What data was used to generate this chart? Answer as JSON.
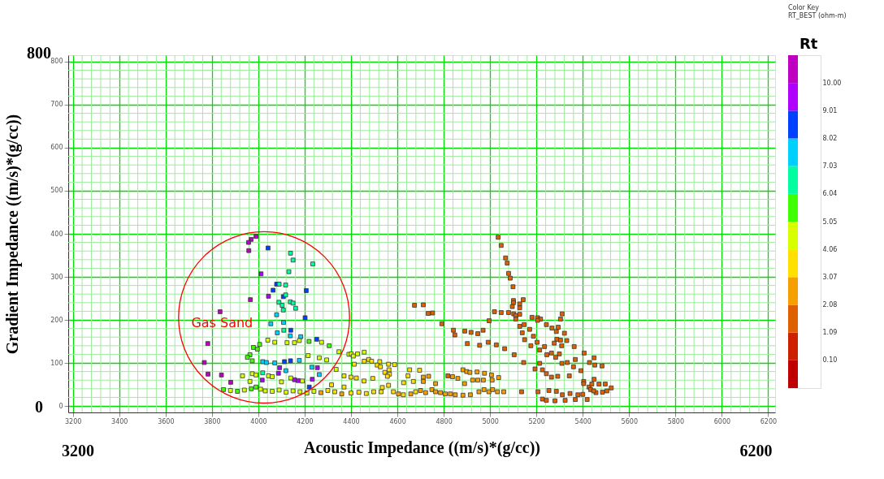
{
  "chart_data": {
    "type": "scatter",
    "xlabel": "Acoustic Impedance ((m/s)*(g/cc))",
    "ylabel": "Gradient Impedance ((m/s)*(g/cc))",
    "legend_title": "Color Key",
    "clabel": "RT_BEST (ohm-m)",
    "annotations": [
      "Gas Sand",
      "800",
      "0",
      "3200",
      "6200",
      "Rt"
    ],
    "marker": "square",
    "grid": true,
    "xlim": [
      3180,
      6230
    ],
    "ylim": [
      -15,
      815
    ],
    "xticks": [
      3200,
      {
        "value": 3240,
        "label": null
      },
      {
        "value": 3280,
        "label": null
      },
      {
        "value": 3320,
        "label": null
      },
      {
        "value": 3360,
        "label": null
      },
      3400,
      {
        "value": 3440,
        "label": null
      },
      {
        "value": 3480,
        "label": null
      },
      {
        "value": 3520,
        "label": null
      },
      {
        "value": 3560,
        "label": null
      },
      3600,
      {
        "value": 3640,
        "label": null
      },
      {
        "value": 3680,
        "label": null
      },
      {
        "value": 3720,
        "label": null
      },
      {
        "value": 3760,
        "label": null
      },
      3800,
      {
        "value": 3840,
        "label": null
      },
      {
        "value": 3880,
        "label": null
      },
      {
        "value": 3920,
        "label": null
      },
      {
        "value": 3960,
        "label": null
      },
      4000,
      {
        "value": 4040,
        "label": null
      },
      {
        "value": 4080,
        "label": null
      },
      {
        "value": 4120,
        "label": null
      },
      {
        "value": 4160,
        "label": null
      },
      4200,
      {
        "value": 4240,
        "label": null
      },
      {
        "value": 4280,
        "label": null
      },
      {
        "value": 4320,
        "label": null
      },
      {
        "value": 4360,
        "label": null
      },
      4400,
      {
        "value": 4440,
        "label": null
      },
      {
        "value": 4480,
        "label": null
      },
      {
        "value": 4520,
        "label": null
      },
      {
        "value": 4560,
        "label": null
      },
      4600,
      {
        "value": 4640,
        "label": null
      },
      {
        "value": 4680,
        "label": null
      },
      {
        "value": 4720,
        "label": null
      },
      {
        "value": 4760,
        "label": null
      },
      4800,
      {
        "value": 4840,
        "label": null
      },
      {
        "value": 4880,
        "label": null
      },
      {
        "value": 4920,
        "label": null
      },
      {
        "value": 4960,
        "label": null
      },
      5000,
      {
        "value": 5040,
        "label": null
      },
      {
        "value": 5080,
        "label": null
      },
      {
        "value": 5120,
        "label": null
      },
      {
        "value": 5160,
        "label": null
      },
      5200,
      {
        "value": 5240,
        "label": null
      },
      {
        "value": 5280,
        "label": null
      },
      {
        "value": 5320,
        "label": null
      },
      {
        "value": 5360,
        "label": null
      },
      5400,
      {
        "value": 5440,
        "label": null
      },
      {
        "value": 5480,
        "label": null
      },
      {
        "value": 5520,
        "label": null
      },
      {
        "value": 5560,
        "label": null
      },
      5600,
      {
        "value": 5640,
        "label": null
      },
      {
        "value": 5680,
        "label": null
      },
      {
        "value": 5720,
        "label": null
      },
      {
        "value": 5760,
        "label": null
      },
      5800,
      {
        "value": 5840,
        "label": null
      },
      {
        "value": 5880,
        "label": null
      },
      {
        "value": 5920,
        "label": null
      },
      {
        "value": 5960,
        "label": null
      },
      6000,
      {
        "value": 6040,
        "label": null
      },
      {
        "value": 6080,
        "label": null
      },
      {
        "value": 6120,
        "label": null
      },
      {
        "value": 6160,
        "label": null
      },
      6200
    ],
    "yticks": [
      0,
      {
        "value": 20,
        "label": null
      },
      {
        "value": 40,
        "label": null
      },
      {
        "value": 60,
        "label": null
      },
      {
        "value": 80,
        "label": null
      },
      100,
      {
        "value": 120,
        "label": null
      },
      {
        "value": 140,
        "label": null
      },
      {
        "value": 160,
        "label": null
      },
      {
        "value": 180,
        "label": null
      },
      200,
      {
        "value": 220,
        "label": null
      },
      {
        "value": 240,
        "label": null
      },
      {
        "value": 260,
        "label": null
      },
      {
        "value": 280,
        "label": null
      },
      300,
      {
        "value": 320,
        "label": null
      },
      {
        "value": 340,
        "label": null
      },
      {
        "value": 360,
        "label": null
      },
      {
        "value": 380,
        "label": null
      },
      400,
      {
        "value": 420,
        "label": null
      },
      {
        "value": 440,
        "label": null
      },
      {
        "value": 460,
        "label": null
      },
      {
        "value": 480,
        "label": null
      },
      500,
      {
        "value": 520,
        "label": null
      },
      {
        "value": 540,
        "label": null
      },
      {
        "value": 560,
        "label": null
      },
      {
        "value": 580,
        "label": null
      },
      600,
      {
        "value": 620,
        "label": null
      },
      {
        "value": 640,
        "label": null
      },
      {
        "value": 660,
        "label": null
      },
      {
        "value": 680,
        "label": null
      },
      700,
      {
        "value": 720,
        "label": null
      },
      {
        "value": 740,
        "label": null
      },
      {
        "value": 760,
        "label": null
      },
      {
        "value": 780,
        "label": null
      },
      800
    ],
    "clim": [
      -0.89,
      10.99
    ],
    "cticks": [
      {
        "value": 0.1,
        "label": "0.10"
      },
      1.09,
      2.08,
      3.07,
      4.06,
      5.05,
      6.04,
      7.03,
      8.02,
      9.01,
      {
        "value": 10.0,
        "label": "10.00"
      }
    ],
    "series": [
      {
        "color": "#c000c0",
        "x": [
          3990,
          3969,
          3958,
          3959,
          3966,
          3835,
          3782,
          3767,
          3783,
          3841,
          3881
        ],
        "values": [
          394,
          387,
          380,
          361,
          247,
          219,
          145,
          101,
          74,
          72,
          55
        ]
      },
      {
        "color": "#b000ff",
        "x": [
          4012,
          4044,
          4092,
          4255,
          4087,
          4156,
          4172,
          4233,
          4017
        ],
        "values": [
          307,
          255,
          89,
          89,
          76,
          61,
          59,
          62,
          60
        ]
      },
      {
        "color": "#0040ff",
        "x": [
          4042,
          4079,
          4064,
          4207,
          4108,
          4202,
          4140,
          4252,
          4113,
          4139,
          4220
        ],
        "values": [
          367,
          283,
          269,
          268,
          254,
          205,
          176,
          155,
          103,
          105,
          44
        ]
      },
      {
        "color": "#00d0ff",
        "x": [
          4079,
          4054,
          4109,
          4082,
          4138,
          4183,
          4019,
          4035,
          4071,
          4177,
          4231,
          4119,
          4263
        ],
        "values": [
          212,
          191,
          194,
          170,
          163,
          161,
          103,
          101,
          100,
          106,
          90,
          82,
          73
        ]
      },
      {
        "color": "#00ffa0",
        "x": [
          4139,
          4150,
          4235,
          4132,
          4090,
          4118,
          4118,
          4089,
          4138,
          4103,
          4150,
          4108,
          4161,
          4110,
          4019
        ],
        "values": [
          355,
          339,
          330,
          312,
          283,
          281,
          258,
          241,
          242,
          234,
          239,
          223,
          227,
          176,
          77
        ]
      },
      {
        "color": "#40ff00",
        "x": [
          3979,
          4006,
          3996,
          3964,
          3953,
          3974,
          4219,
          4306,
          3850,
          3910,
          3970,
          3990
        ],
        "values": [
          136,
          143,
          132,
          119,
          113,
          105,
          150,
          140,
          38,
          34,
          40,
          44
        ]
      },
      {
        "color": "#d8ff00",
        "x": [
          4041,
          4071,
          4124,
          4156,
          4177,
          4273,
          4348,
          4215,
          4263,
          4295,
          4336,
          4391,
          3974,
          3990,
          4044,
          4060,
          3932,
          3964,
          4100,
          4140,
          4190,
          3880,
          3940,
          4010,
          4030,
          4060,
          4090,
          4120,
          4150,
          4180,
          4210,
          4240,
          4401,
          4457,
          4428,
          4410
        ],
        "values": [
          153,
          148,
          147,
          147,
          152,
          148,
          126,
          117,
          112,
          107,
          85,
          120,
          75,
          72,
          70,
          68,
          70,
          57,
          56,
          65,
          58,
          36,
          37,
          39,
          35,
          34,
          37,
          32,
          35,
          33,
          30,
          34,
          121,
          125,
          121,
          116
        ]
      },
      {
        "color": "#ffe000",
        "x": [
          4300,
          4330,
          4400,
          4476,
          4524,
          4562,
          4540,
          4370,
          4418,
          4456,
          4316,
          4370,
          4457,
          4489,
          4588,
          4414,
          4513,
          4527,
          4564,
          4546,
          4566,
          4557,
          4653,
          4646,
          4696,
          4400,
          4423,
          4494,
          4434,
          4466,
          4498,
          4530,
          4535,
          4562,
          4583,
          4626,
          4679,
          4669,
          4627
        ],
        "values": [
          36,
          33,
          30,
          108,
          103,
          97,
          null,
          70,
          null,
          58,
          49,
          44,
          104,
          104,
          96,
          97,
          95,
          91,
          84,
          78,
          74,
          69,
          84,
          70,
          83,
          67,
          65,
          64,
          32,
          29,
          33,
          33,
          43,
          48,
          33,
          26,
          33,
          57,
          54
        ]
      },
      {
        "color": "#f5a000",
        "x": [
          4270,
          4360,
          4712,
          4735,
          4838,
          4861,
          4883,
          4899,
          4913,
          4944,
          4976,
          5006,
          5032,
          5037,
          4890,
          4925,
          4947,
          4971,
          5009,
          4605,
          4658,
          4700,
          4722,
          4749,
          4765,
          4786,
          4807,
          4829,
          4850,
          4883,
          4915,
          4952,
          4974,
          4995,
          5011,
          5032,
          5059,
          4712,
          4765
        ],
        "values": [
          31,
          28,
          67,
          69,
          68,
          64,
          84,
          80,
          78,
          79,
          76,
          72,
          null,
          66,
          52,
          60,
          60,
          60,
          60,
          28,
          28,
          36,
          31,
          38,
          33,
          31,
          28,
          28,
          26,
          25,
          26,
          33,
          38,
          33,
          38,
          33,
          33,
          57,
          52
        ]
      },
      {
        "color": "#e06000",
        "x": [
          4818,
          5035,
          5048,
          5067,
          5074,
          5080,
          5087,
          5099,
          5101,
          5101,
          5128,
          5143,
          5096,
          5128,
          4674,
          4712,
          4733,
          4752,
          5019,
          5048,
          5080,
          5102,
          5128,
          4792,
          4996,
          5111,
          5111,
          5147,
          5128,
          5181,
          5205,
          5218,
          5205,
          5311,
          5304,
          4842,
          4848,
          4891,
          4918,
          4947,
          4970,
          4902,
          4955,
          4992,
          5027,
          5063,
          5104,
          5139,
          5149,
          5171,
          5187,
          5176,
          5203,
          5214,
          5235,
          5245,
          5243,
          5267,
          5294,
          5286,
          5288,
          5304,
          5331,
          5321,
          5277,
          5309,
          5299,
          5283,
          5265,
          5363,
          5406,
          5368,
          5333,
          5310,
          5360,
          5392,
          5429,
          5145,
          5214,
          5194,
          5226,
          5243,
          5265,
          5292,
          5342,
          5404,
          5404,
          5427,
          5434,
          5419,
          5379,
          5345,
          5312,
          5286,
          5254,
          5226,
          5243,
          5280,
          5324,
          5368,
          5136,
          5207,
          5400,
          5449,
          5452,
          5483,
          5449,
          5439,
          5470,
          5497,
          5523,
          5504,
          5485,
          5457,
          5447
        ],
        "values": [
          70,
          392,
          373,
          344,
          332,
          308,
          297,
          277,
          245,
          240,
          237,
          247,
          231,
          228,
          234,
          235,
          215,
          216,
          219,
          217,
          217,
          214,
          213,
          191,
          198,
          210,
          202,
          189,
          185,
          206,
          205,
          202,
          199,
          214,
          202,
          176,
          165,
          174,
          171,
          168,
          176,
          145,
          141,
          148,
          142,
          133,
          119,
          170,
          154,
          178,
          162,
          140,
          148,
          130,
          138,
          119,
          189,
          181,
          183,
          173,
          155,
          153,
          152,
          169,
          146,
          140,
          121,
          113,
          123,
          138,
          123,
          108,
          101,
          99,
          91,
          82,
          101,
          101,
          99,
          86,
          84,
          75,
          67,
          69,
          70,
          57,
          52,
          44,
          38,
          15,
          26,
          29,
          26,
          34,
          36,
          16,
          13,
          12,
          13,
          15,
          33,
          33,
          27,
          112,
          95,
          93,
          62,
          51,
          51,
          51,
          42,
          35,
          32,
          31,
          35
        ]
      }
    ]
  }
}
